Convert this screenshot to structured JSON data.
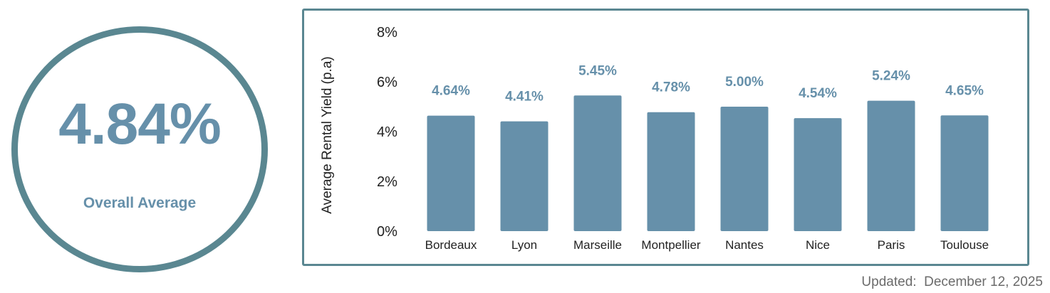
{
  "summary": {
    "value": "4.84%",
    "label": "Overall Average"
  },
  "updated": {
    "label": "Updated:",
    "date": "December 12, 2025"
  },
  "colors": {
    "bar": "#6690aa",
    "frame": "#5a8791",
    "value_label": "#6690aa",
    "text": "#222222"
  },
  "chart_data": {
    "type": "bar",
    "categories": [
      "Bordeaux",
      "Lyon",
      "Marseille",
      "Montpellier",
      "Nantes",
      "Nice",
      "Paris",
      "Toulouse"
    ],
    "values": [
      4.64,
      4.41,
      5.45,
      4.78,
      5.0,
      4.54,
      5.24,
      4.65
    ],
    "value_labels": [
      "4.64%",
      "4.41%",
      "5.45%",
      "4.78%",
      "5.00%",
      "4.54%",
      "5.24%",
      "4.65%"
    ],
    "title": "",
    "xlabel": "",
    "ylabel": "Average Rental Yield (p.a)",
    "ylim": [
      0,
      8
    ],
    "yticks": [
      0,
      2,
      4,
      6,
      8
    ],
    "ytick_labels": [
      "0%",
      "2%",
      "4%",
      "6%",
      "8%"
    ],
    "grid": false,
    "legend": "none"
  }
}
